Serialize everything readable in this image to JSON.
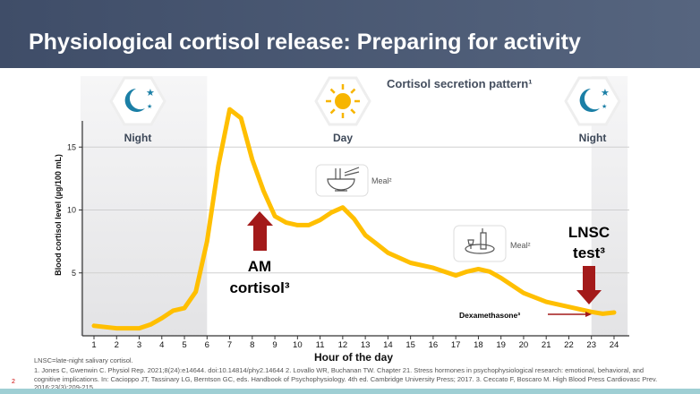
{
  "slide": {
    "title": "Physiological cortisol release: Preparing for activity",
    "page_number": "2",
    "abbreviation": "LNSC=late-night salivary cortisol.",
    "references": "1. Jones C, Gwenwin C. Physiol Rep. 2021;8(24):e14644. doi:10.14814/phy2.14644  2. Lovallo WR, Buchanan TW. Chapter 21. Stress hormones in psychophysiological research: emotional, behavioral, and cognitive implications. In: Cacioppo JT, Tassinary LG, Berntson GC, eds. Handbook of Psychophysiology. 4th ed. Cambridge University Press; 2017. 3. Ceccato F, Boscaro M. High Blood Press Cardiovasc Prev. 2016;23(3):209-215."
  },
  "chart_data": {
    "type": "line",
    "title": "Cortisol secretion pattern¹",
    "xlabel": "Hour of the day",
    "ylabel": "Blood cortisol level (µg/100 mL)",
    "xlim": [
      1,
      24
    ],
    "ylim": [
      0,
      17.5
    ],
    "xticks": [
      1,
      2,
      3,
      4,
      5,
      6,
      7,
      8,
      9,
      10,
      11,
      12,
      13,
      14,
      15,
      16,
      17,
      18,
      19,
      20,
      21,
      22,
      23,
      24
    ],
    "yticks": [
      5,
      10,
      15
    ],
    "grid": true,
    "series": [
      {
        "name": "Cortisol",
        "color": "#ffbf00",
        "x": [
          1,
          2,
          3,
          3.5,
          4,
          4.5,
          5,
          5.5,
          6,
          6.5,
          7,
          7.5,
          8,
          8.5,
          9,
          9.5,
          10,
          10.5,
          11,
          11.5,
          12,
          12.5,
          13,
          13.5,
          14,
          15,
          16,
          17,
          17.5,
          18,
          18.5,
          19,
          20,
          21,
          22,
          23,
          23.5,
          24
        ],
        "y": [
          0.8,
          0.6,
          0.6,
          0.9,
          1.4,
          2.0,
          2.2,
          3.5,
          7.5,
          13.5,
          18,
          17.3,
          14,
          11.5,
          9.5,
          9,
          8.8,
          8.8,
          9.2,
          9.8,
          10.2,
          9.3,
          8,
          7.3,
          6.6,
          5.8,
          5.4,
          4.8,
          5.1,
          5.3,
          5.1,
          4.6,
          3.4,
          2.7,
          2.3,
          1.9,
          1.75,
          1.85
        ]
      }
    ],
    "regions": [
      {
        "label": "Night",
        "from": 0.4,
        "to": 6
      },
      {
        "label": "Day",
        "from": 6,
        "to": 23
      },
      {
        "label": "Night",
        "from": 23,
        "to": 24.6
      }
    ],
    "annotations": {
      "am": "AM",
      "am2": "cortisol³",
      "lnsc": "LNSC",
      "lnsc2": "test³",
      "dex": "Dexamethasone³",
      "meal1": "Meal²",
      "meal2": "Meal²"
    },
    "colors": {
      "arrow": "#a31a1a",
      "icon": "#1b7fa6",
      "sun": "#f7b500",
      "shade": "#e8e8ea"
    }
  }
}
